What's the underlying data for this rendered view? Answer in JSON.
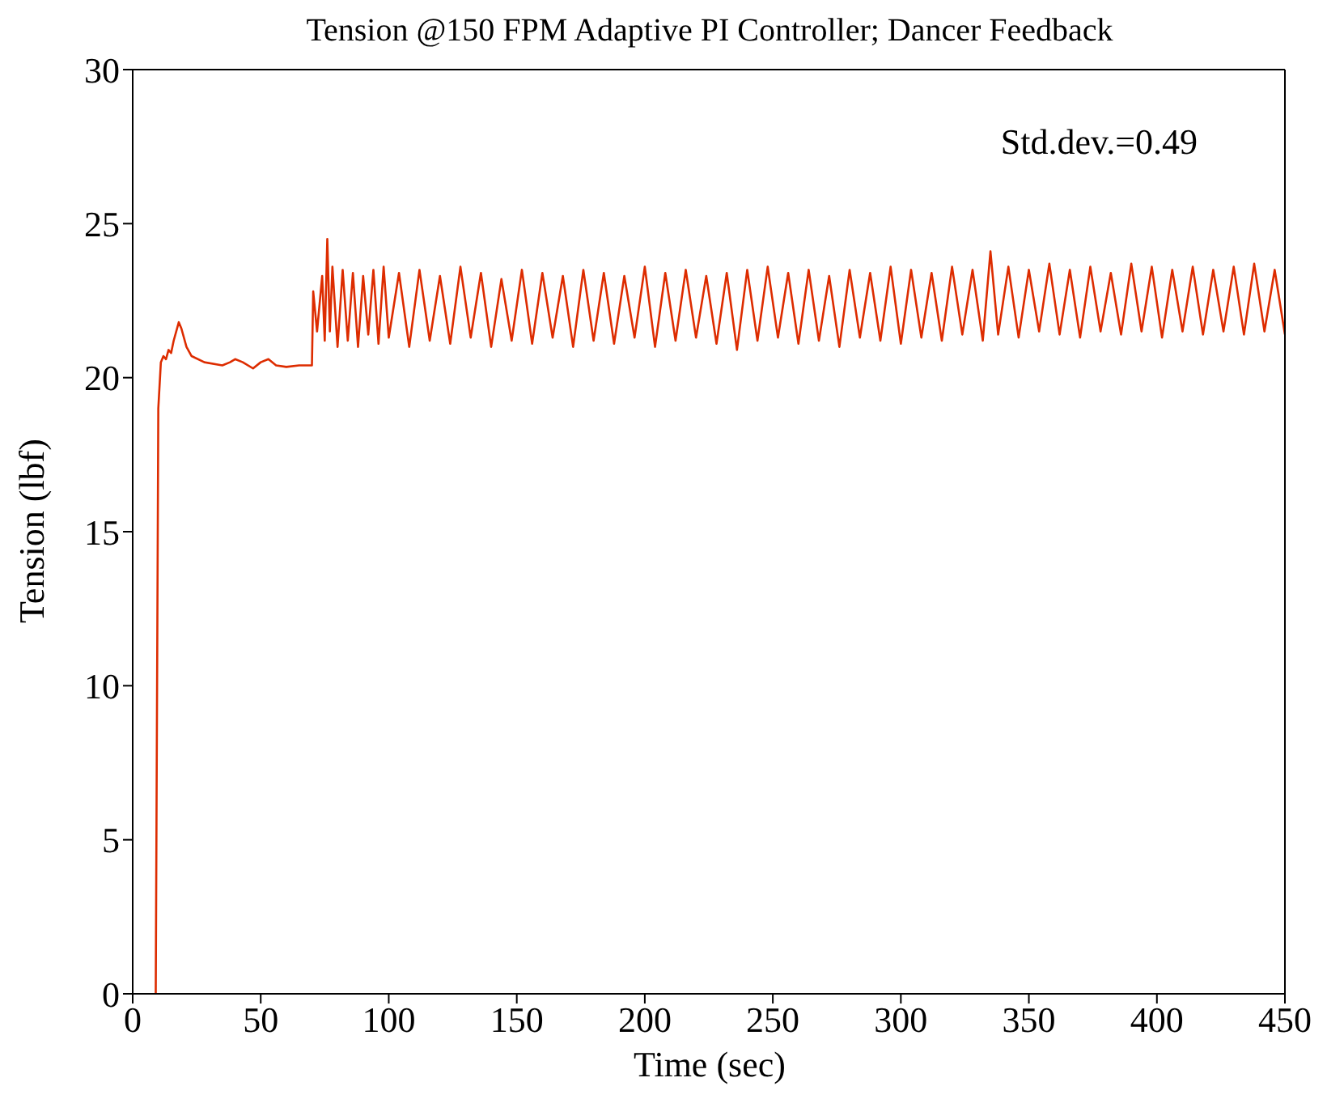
{
  "chart_data": {
    "type": "line",
    "title": "Tension @150 FPM Adaptive PI Controller; Dancer Feedback",
    "xlabel": "Time (sec)",
    "ylabel": "Tension (lbf)",
    "annotations": [
      "Std.dev.=0.49"
    ],
    "xlim": [
      0,
      450
    ],
    "xticks": [
      0,
      50,
      100,
      150,
      200,
      250,
      300,
      350,
      400,
      450
    ],
    "ylim": [
      0,
      30
    ],
    "yticks": [
      0,
      5,
      10,
      15,
      20,
      25,
      30
    ],
    "marker": "none",
    "line_style": "solid",
    "series": [
      {
        "color": "#dd2c00",
        "x": [
          9,
          10,
          11,
          12,
          13,
          14,
          15,
          16,
          18,
          19,
          21,
          23,
          28,
          35,
          38,
          40,
          43,
          47,
          50,
          53,
          56,
          60,
          65,
          69,
          70,
          70.5,
          72,
          74,
          75,
          76,
          77,
          78,
          80,
          82,
          84,
          86,
          88,
          90,
          92,
          94,
          96,
          98,
          100,
          104,
          108,
          112,
          116,
          120,
          124,
          128,
          132,
          136,
          140,
          144,
          148,
          152,
          156,
          160,
          164,
          168,
          172,
          176,
          180,
          184,
          188,
          192,
          196,
          200,
          204,
          208,
          212,
          216,
          220,
          224,
          228,
          232,
          236,
          240,
          244,
          248,
          252,
          256,
          260,
          264,
          268,
          272,
          276,
          280,
          284,
          288,
          292,
          296,
          300,
          304,
          308,
          312,
          316,
          320,
          324,
          328,
          332,
          335,
          338,
          342,
          346,
          350,
          354,
          358,
          362,
          366,
          370,
          374,
          378,
          382,
          386,
          390,
          394,
          398,
          402,
          406,
          410,
          414,
          418,
          422,
          426,
          430,
          434,
          438,
          442,
          446,
          450
        ],
        "values": [
          0,
          19.0,
          20.5,
          20.7,
          20.6,
          20.9,
          20.8,
          21.2,
          21.8,
          21.6,
          21.0,
          20.7,
          20.5,
          20.4,
          20.5,
          20.6,
          20.5,
          20.3,
          20.5,
          20.6,
          20.4,
          20.35,
          20.4,
          20.4,
          20.4,
          22.8,
          21.5,
          23.3,
          21.2,
          24.5,
          21.5,
          23.6,
          21.0,
          23.5,
          21.2,
          23.4,
          21.0,
          23.3,
          21.4,
          23.5,
          21.1,
          23.6,
          21.3,
          23.4,
          21.0,
          23.5,
          21.2,
          23.3,
          21.1,
          23.6,
          21.3,
          23.4,
          21.0,
          23.2,
          21.2,
          23.5,
          21.1,
          23.4,
          21.3,
          23.3,
          21.0,
          23.5,
          21.2,
          23.4,
          21.1,
          23.3,
          21.3,
          23.6,
          21.0,
          23.4,
          21.2,
          23.5,
          21.3,
          23.3,
          21.1,
          23.4,
          20.9,
          23.5,
          21.2,
          23.6,
          21.3,
          23.4,
          21.1,
          23.5,
          21.2,
          23.3,
          21.0,
          23.5,
          21.3,
          23.4,
          21.2,
          23.6,
          21.1,
          23.5,
          21.3,
          23.4,
          21.2,
          23.6,
          21.4,
          23.5,
          21.2,
          24.1,
          21.4,
          23.6,
          21.3,
          23.5,
          21.5,
          23.7,
          21.4,
          23.5,
          21.3,
          23.6,
          21.5,
          23.4,
          21.4,
          23.7,
          21.5,
          23.6,
          21.3,
          23.5,
          21.5,
          23.6,
          21.4,
          23.5,
          21.5,
          23.6,
          21.4,
          23.7,
          21.5,
          23.5,
          21.4
        ]
      }
    ]
  }
}
